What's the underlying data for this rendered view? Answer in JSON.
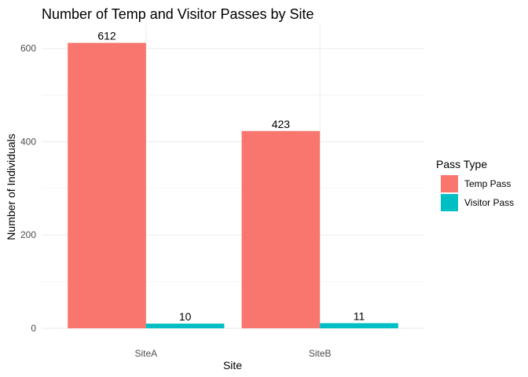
{
  "chart_data": {
    "type": "bar",
    "title": "Number of Temp and Visitor Passes by Site",
    "xlabel": "Site",
    "ylabel": "Number of Individuals",
    "categories": [
      "SiteA",
      "SiteB"
    ],
    "series": [
      {
        "name": "Temp Pass",
        "color": "#F8766D",
        "values": [
          612,
          423
        ]
      },
      {
        "name": "Visitor Pass",
        "color": "#00BFC4",
        "values": [
          10,
          11
        ]
      }
    ],
    "ylim": [
      0,
      650
    ],
    "yticks": [
      0,
      200,
      400,
      600
    ],
    "grid": true,
    "legend": {
      "title": "Pass Type",
      "position": "right"
    }
  }
}
